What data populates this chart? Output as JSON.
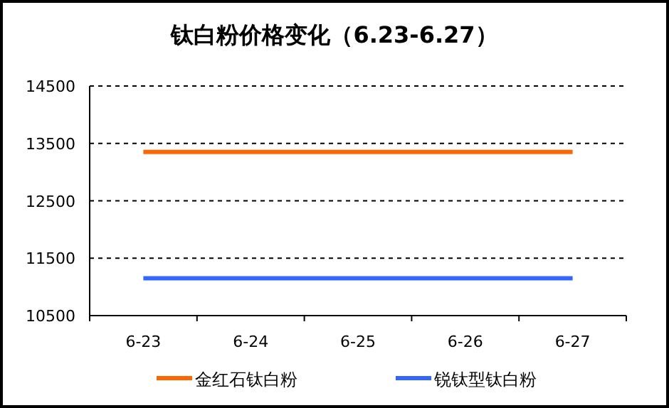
{
  "chart_data": {
    "type": "line",
    "title": "钛白粉价格变化（6.23-6.27）",
    "categories": [
      "6-23",
      "6-24",
      "6-25",
      "6-26",
      "6-27"
    ],
    "series": [
      {
        "name": "金红石钛白粉",
        "color": "#ff6600",
        "values": [
          13350,
          13350,
          13350,
          13350,
          13350
        ]
      },
      {
        "name": "锐钛型钛白粉",
        "color": "#3366ff",
        "values": [
          11150,
          11150,
          11150,
          11150,
          11150
        ]
      }
    ],
    "ylim": [
      10500,
      14500
    ],
    "yticks": [
      10500,
      11500,
      12500,
      13500,
      14500
    ],
    "grid": "y",
    "legend": "bottom",
    "marker": "none",
    "line_style": "solid"
  }
}
